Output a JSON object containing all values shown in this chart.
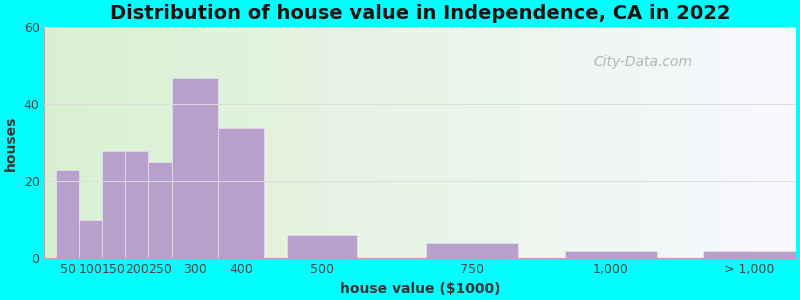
{
  "title": "Distribution of house value in Independence, CA in 2022",
  "xlabel": "house value ($1000)",
  "ylabel": "houses",
  "background_outer": "#00FFFF",
  "bar_color": "#b8a0cc",
  "bar_edgecolor": "#e8e0f0",
  "ylim": [
    0,
    60
  ],
  "yticks": [
    0,
    20,
    40,
    60
  ],
  "bar_heights": [
    23,
    10,
    28,
    28,
    25,
    47,
    34,
    6,
    4,
    2,
    2
  ],
  "xtick_labels": [
    "50",
    "100",
    "150",
    "200",
    "250",
    "300",
    "400",
    "500",
    "750",
    "1,000",
    "> 1,000"
  ],
  "title_fontsize": 14,
  "axis_fontsize": 10,
  "tick_fontsize": 9,
  "watermark_text": "City-Data.com",
  "grid_color": "#dddddd",
  "bg_left_color": "#d8f0d0",
  "bg_right_color": "#f8f8ff"
}
